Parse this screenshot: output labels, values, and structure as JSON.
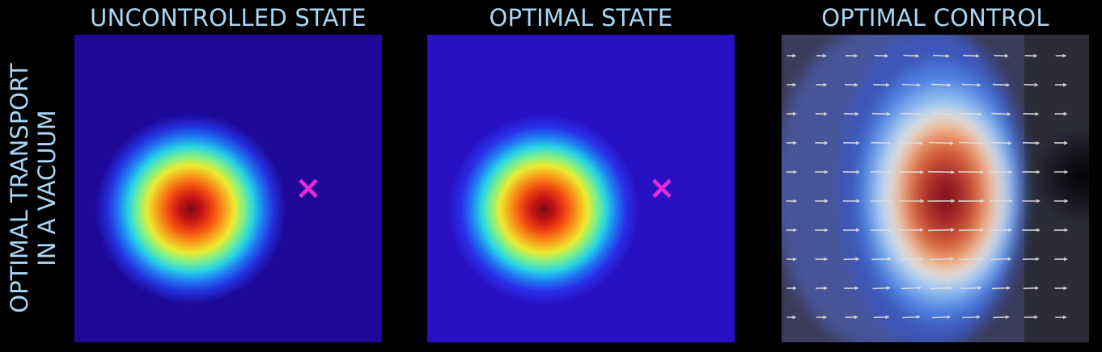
{
  "row_label": {
    "line1": "OPTIMAL TRANSPORT",
    "line2": "IN A VACUUM"
  },
  "panels": [
    {
      "title": "UNCONTROLLED STATE",
      "target_marker": "×"
    },
    {
      "title": "OPTIMAL STATE",
      "target_marker": "×"
    },
    {
      "title": "OPTIMAL CONTROL"
    }
  ],
  "colors": {
    "title_text": "#a9d6f2",
    "background": "#000000",
    "state_background": "#1e0898",
    "target_marker": "#e62ad8",
    "arrow": "#dddddd"
  }
}
